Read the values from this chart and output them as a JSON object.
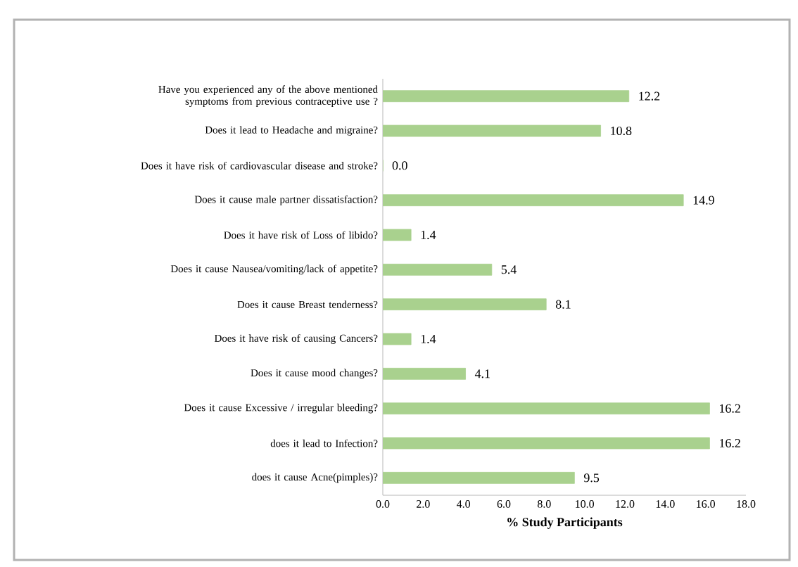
{
  "chart_data": {
    "type": "bar",
    "orientation": "horizontal",
    "xlabel": "% Study Participants",
    "categories": [
      "Have you experienced any of the above mentioned symptoms from previous contraceptive use ?",
      "Does it lead to Headache and migraine?",
      "Does it have risk of cardiovascular disease and stroke?",
      "Does it cause male partner dissatisfaction?",
      "Does it have risk of Loss of libido?",
      "Does it cause Nausea/vomiting/lack of appetite?",
      "Does it cause Breast tenderness?",
      "Does it have risk of causing Cancers?",
      "Does it cause mood changes?",
      "Does it cause Excessive / irregular bleeding?",
      "does it lead to Infection?",
      "does it cause Acne(pimples)?"
    ],
    "values": [
      12.2,
      10.8,
      0.0,
      14.9,
      1.4,
      5.4,
      8.1,
      1.4,
      4.1,
      16.2,
      16.2,
      9.5
    ],
    "value_labels": [
      "12.2",
      "10.8",
      "0.0",
      "14.9",
      "1.4",
      "5.4",
      "8.1",
      "1.4",
      "4.1",
      "16.2",
      "16.2",
      "9.5"
    ],
    "color": "#a9d18e",
    "grid": false,
    "xlim": [
      0,
      18
    ],
    "xticks": [
      {
        "value": 0,
        "label": "0.0"
      },
      {
        "value": 2,
        "label": "2.0"
      },
      {
        "value": 4,
        "label": "4.0"
      },
      {
        "value": 6,
        "label": "6.0"
      },
      {
        "value": 8,
        "label": "8.0"
      },
      {
        "value": 10,
        "label": "10.0"
      },
      {
        "value": 12,
        "label": "12.0"
      },
      {
        "value": 14,
        "label": "14.0"
      },
      {
        "value": 16,
        "label": "16.0"
      },
      {
        "value": 18,
        "label": "18.0"
      }
    ]
  }
}
